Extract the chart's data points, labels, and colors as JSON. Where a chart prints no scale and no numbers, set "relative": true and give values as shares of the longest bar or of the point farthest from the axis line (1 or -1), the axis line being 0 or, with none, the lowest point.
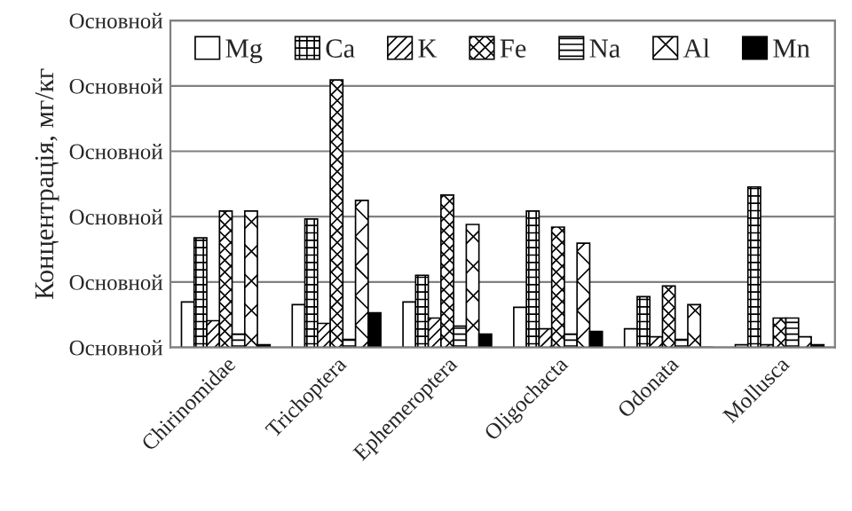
{
  "chart_data": {
    "type": "bar",
    "ylabel": "Концентрація, мг/кг",
    "relative": true,
    "categories": [
      "Chirinomidae",
      "Trichoptera",
      "Ephemeroptera",
      "Oligochacta",
      "Odonata",
      "Mollusca"
    ],
    "series": [
      {
        "name": "Mg",
        "color": "#ffffff",
        "values": [
          0.17,
          0.16,
          0.17,
          0.15,
          0.07,
          0.01
        ]
      },
      {
        "name": "Ca",
        "color": "#000000",
        "values": [
          0.41,
          0.48,
          0.27,
          0.51,
          0.19,
          0.6
        ]
      },
      {
        "name": "K",
        "color": "#000000",
        "values": [
          0.1,
          0.09,
          0.11,
          0.07,
          0.04,
          0.01
        ]
      },
      {
        "name": "Fe",
        "color": "#000000",
        "values": [
          0.51,
          1,
          0.57,
          0.45,
          0.23,
          0.11
        ]
      },
      {
        "name": "Na",
        "color": "#000000",
        "values": [
          0.05,
          0.03,
          0.08,
          0.05,
          0.03,
          0.11
        ]
      },
      {
        "name": "Al",
        "color": "#000000",
        "values": [
          0.51,
          0.55,
          0.46,
          0.39,
          0.16,
          0.04
        ]
      },
      {
        "name": "Mn",
        "color": "#000000",
        "values": [
          0.01,
          0.13,
          0.05,
          0.06,
          0,
          0.01
        ]
      }
    ],
    "annotations": [
      "Основной",
      "Основной",
      "Основной",
      "Основной",
      "Основной",
      "Основной"
    ],
    "grid": "y",
    "legend": "top"
  }
}
